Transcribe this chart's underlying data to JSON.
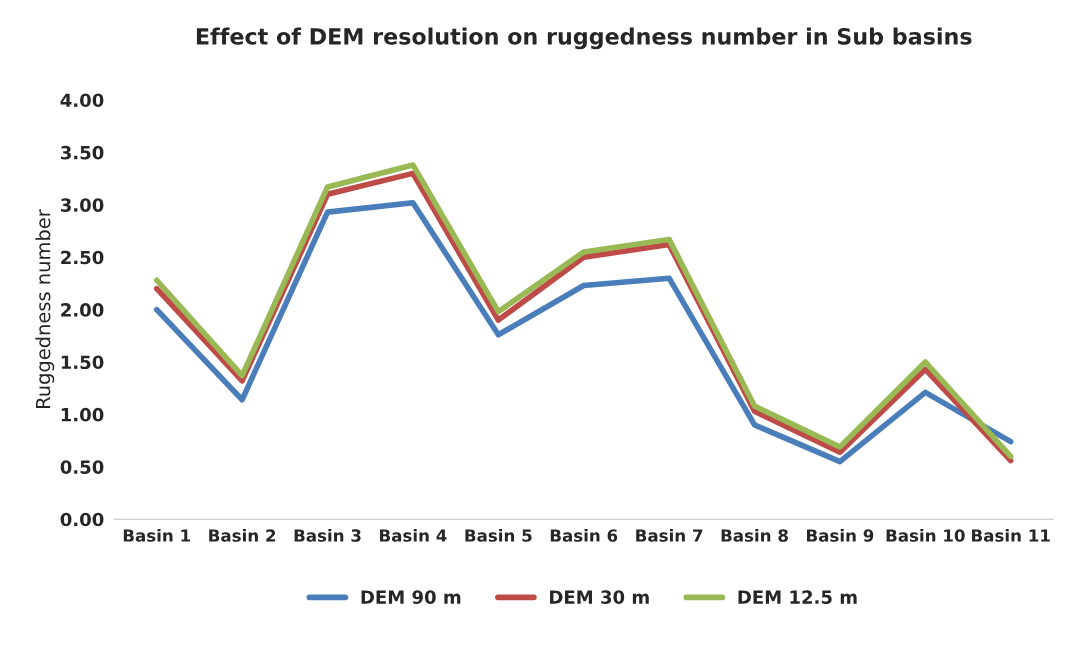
{
  "chart_data": {
    "type": "line",
    "title": "Effect of DEM resolution on ruggedness number in Sub basins",
    "ylabel": "Ruggedness number",
    "categories": [
      "Basin 1",
      "Basin 2",
      "Basin 3",
      "Basin 4",
      "Basin 5",
      "Basin 6",
      "Basin 7",
      "Basin 8",
      "Basin 9",
      "Basin 10",
      "Basin 11"
    ],
    "series": [
      {
        "name": "DEM 90 m",
        "color": "#4a7ebb",
        "values": [
          2.0,
          1.14,
          2.93,
          3.02,
          1.76,
          2.23,
          2.3,
          0.9,
          0.55,
          1.21,
          0.74
        ]
      },
      {
        "name": "DEM 30 m",
        "color": "#be4b48",
        "values": [
          2.2,
          1.32,
          3.1,
          3.3,
          1.9,
          2.5,
          2.62,
          1.03,
          0.64,
          1.43,
          0.56
        ]
      },
      {
        "name": "DEM 12.5 m",
        "color": "#98b954",
        "values": [
          2.28,
          1.37,
          3.17,
          3.38,
          1.98,
          2.55,
          2.67,
          1.08,
          0.69,
          1.5,
          0.6
        ]
      }
    ],
    "ylim": [
      0,
      4
    ],
    "yticks": [
      {
        "value": 0,
        "label": "0.00"
      },
      {
        "value": 0.5,
        "label": "0.50"
      },
      {
        "value": 1,
        "label": "1.00"
      },
      {
        "value": 1.5,
        "label": "1.50"
      },
      {
        "value": 2,
        "label": "2.00"
      },
      {
        "value": 2.5,
        "label": "2.50"
      },
      {
        "value": 3,
        "label": "3.00"
      },
      {
        "value": 3.5,
        "label": "3.50"
      },
      {
        "value": 4,
        "label": "4.00"
      }
    ],
    "grid": false,
    "legend": "bottom"
  }
}
